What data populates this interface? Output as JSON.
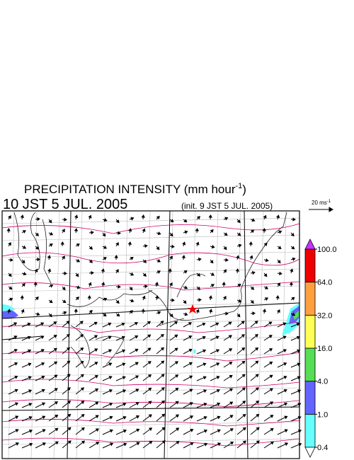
{
  "title": "PRECIPITATION INTENSITY (mm hour",
  "title_sup": "-1",
  "title_end": ")",
  "valid_time": "10 JST 5 JUL. 2005",
  "init_time": "(init. 9 JST 5 JUL. 2005)",
  "ref_arrow_label": "20 ms",
  "ref_arrow_sup": "-1",
  "colorbar": {
    "levels": [
      0.4,
      {
        "value": 1,
        "label": "1.0"
      },
      {
        "value": 4,
        "label": "4.0"
      },
      {
        "value": 16,
        "label": "16.0"
      },
      {
        "value": 32,
        "label": "32.0"
      },
      {
        "value": 64,
        "label": "64.0"
      },
      {
        "value": 100,
        "label": "100.0"
      }
    ],
    "colors": [
      "#66ffff",
      "#6464ff",
      "#55dd55",
      "#ffff55",
      "#ffa040",
      "#ee0000"
    ],
    "over_color": "#cc33ff",
    "under_color": "#ffffff"
  }
}
